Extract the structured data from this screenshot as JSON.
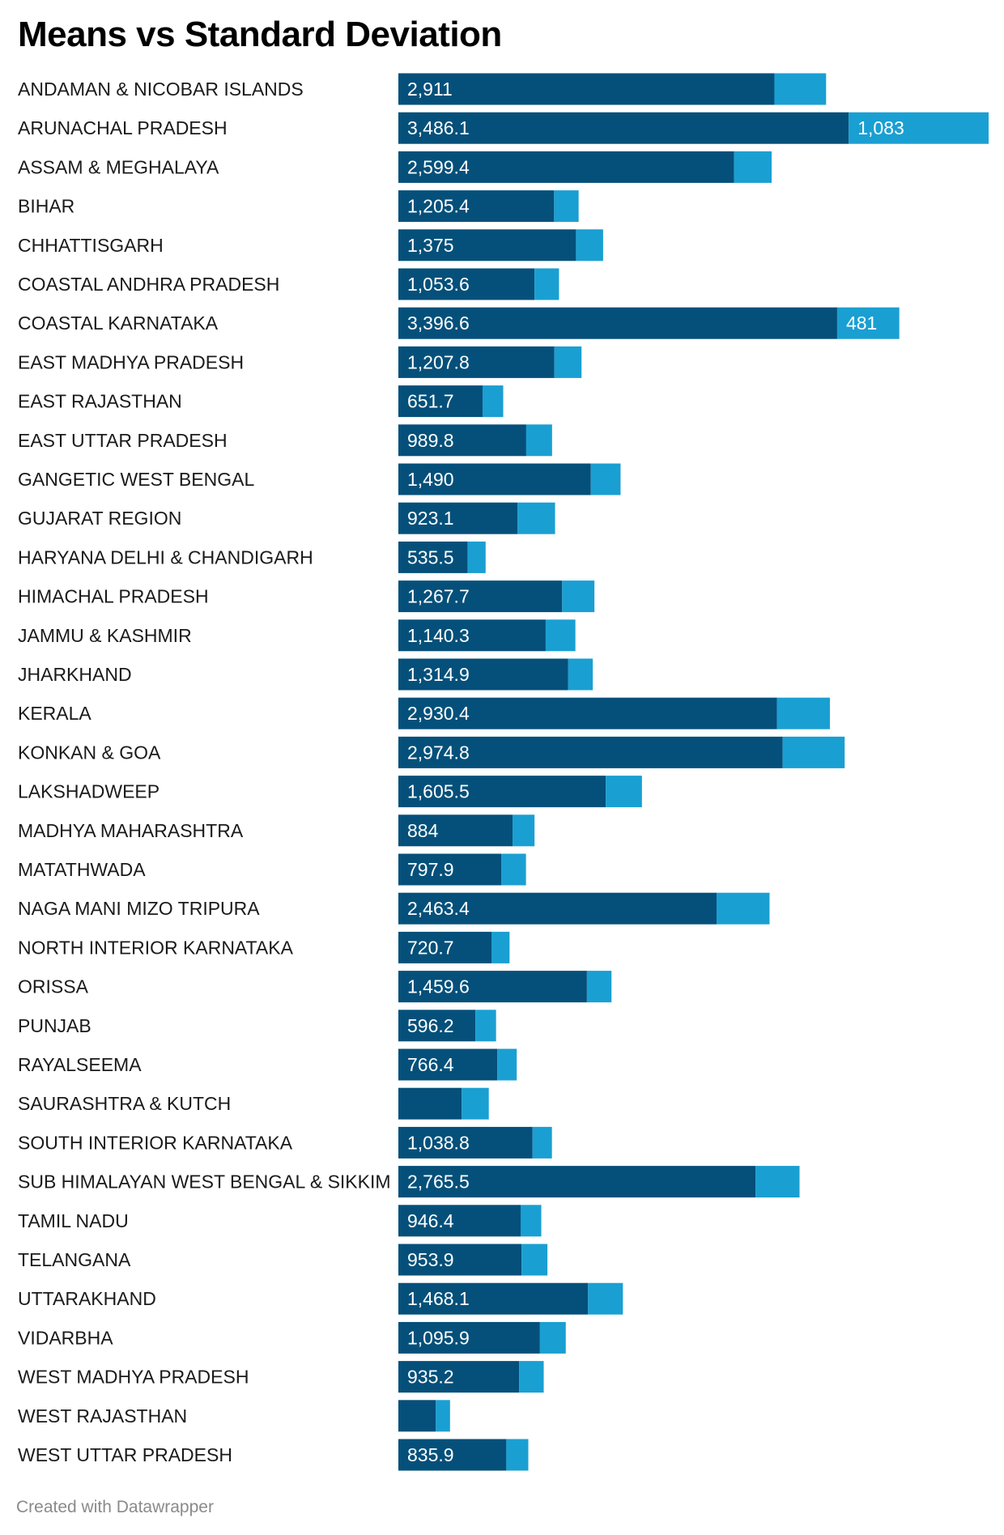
{
  "title": "Means vs Standard Deviation",
  "footer": "Created with Datawrapper",
  "colors": {
    "mean": "#05507a",
    "std": "#1a9fd2"
  },
  "chart_data": {
    "type": "bar",
    "orientation": "horizontal",
    "stacked": true,
    "title": "Means vs Standard Deviation",
    "xlim": [
      0,
      4569
    ],
    "categories": [
      "ANDAMAN & NICOBAR ISLANDS",
      "ARUNACHAL PRADESH",
      "ASSAM & MEGHALAYA",
      "BIHAR",
      "CHHATTISGARH",
      "COASTAL ANDHRA PRADESH",
      "COASTAL KARNATAKA",
      "EAST MADHYA PRADESH",
      "EAST RAJASTHAN",
      "EAST UTTAR PRADESH",
      "GANGETIC WEST BENGAL",
      "GUJARAT REGION",
      "HARYANA DELHI & CHANDIGARH",
      "HIMACHAL PRADESH",
      "JAMMU & KASHMIR",
      "JHARKHAND",
      "KERALA",
      "KONKAN & GOA",
      "LAKSHADWEEP",
      "MADHYA MAHARASHTRA",
      "MATATHWADA",
      "NAGA MANI MIZO TRIPURA",
      "NORTH INTERIOR KARNATAKA",
      "ORISSA",
      "PUNJAB",
      "RAYALSEEMA",
      "SAURASHTRA & KUTCH",
      "SOUTH INTERIOR KARNATAKA",
      "SUB HIMALAYAN WEST BENGAL & SIKKIM",
      "TAMIL NADU",
      "TELANGANA",
      "UTTARAKHAND",
      "VIDARBHA",
      "WEST MADHYA PRADESH",
      "WEST RAJASTHAN",
      "WEST UTTAR PRADESH"
    ],
    "series": [
      {
        "values": [
          2911,
          3486.1,
          2599.4,
          1205.4,
          1375,
          1053.6,
          3396.6,
          1207.8,
          651.7,
          989.8,
          1490,
          923.1,
          535.5,
          1267.7,
          1140.3,
          1314.9,
          2930.4,
          2974.8,
          1605.5,
          884,
          797.9,
          2463.4,
          720.7,
          1459.6,
          596.2,
          766.4,
          490,
          1038.8,
          2765.5,
          946.4,
          953.9,
          1468.1,
          1095.9,
          935.2,
          290,
          835.9
        ],
        "labels": [
          "2,911",
          "3,486.1",
          "2,599.4",
          "1,205.4",
          "1,375",
          "1,053.6",
          "3,396.6",
          "1,207.8",
          "651.7",
          "989.8",
          "1,490",
          "923.1",
          "535.5",
          "1,267.7",
          "1,140.3",
          "1,314.9",
          "2,930.4",
          "2,974.8",
          "1,605.5",
          "884",
          "797.9",
          "2,463.4",
          "720.7",
          "1,459.6",
          "596.2",
          "766.4",
          "",
          "1,038.8",
          "2,765.5",
          "946.4",
          "953.9",
          "1,468.1",
          "1,095.9",
          "935.2",
          "",
          "835.9"
        ]
      },
      {
        "values": [
          400,
          1083,
          290,
          190,
          210,
          190,
          481,
          210,
          160,
          200,
          230,
          290,
          140,
          250,
          230,
          190,
          410,
          480,
          280,
          170,
          190,
          410,
          140,
          190,
          160,
          150,
          210,
          150,
          340,
          160,
          200,
          270,
          200,
          190,
          110,
          170
        ],
        "labels": [
          "",
          "1,083",
          "",
          "",
          "",
          "",
          "481",
          "",
          "",
          "",
          "",
          "",
          "",
          "",
          "",
          "",
          "",
          "",
          "",
          "",
          "",
          "",
          "",
          "",
          "",
          "",
          "",
          "",
          "",
          "",
          "",
          "",
          "",
          "",
          "",
          ""
        ]
      }
    ]
  }
}
